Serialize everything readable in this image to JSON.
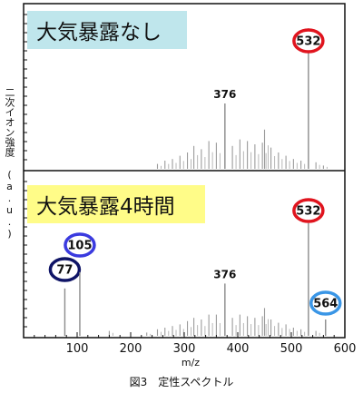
{
  "ylabel": "二次イオン強度 (a.u.)",
  "xlabel": "m/z",
  "caption": "図3　定性スペクトル",
  "colors": {
    "top_box": "#bfe6ec",
    "bottom_box": "#fffc88",
    "red": "#e0141e",
    "blue": "#3a3adf",
    "navy": "#0f1466",
    "lightblue": "#3a96e6"
  },
  "chart_data": [
    {
      "type": "line",
      "panel": "top",
      "title": "大気暴露なし",
      "xlim": [
        0,
        600
      ],
      "x_ticks": [],
      "peaks": [
        {
          "x": 376,
          "y": 0.4,
          "label": "376",
          "style": "plain"
        },
        {
          "x": 532,
          "y": 0.86,
          "label": "532",
          "style": "red"
        }
      ],
      "cluster": [
        {
          "x": 250,
          "y": 0.03
        },
        {
          "x": 264,
          "y": 0.05
        },
        {
          "x": 278,
          "y": 0.06
        },
        {
          "x": 292,
          "y": 0.08
        },
        {
          "x": 306,
          "y": 0.1
        },
        {
          "x": 318,
          "y": 0.14
        },
        {
          "x": 332,
          "y": 0.12
        },
        {
          "x": 346,
          "y": 0.17
        },
        {
          "x": 360,
          "y": 0.16
        },
        {
          "x": 390,
          "y": 0.14
        },
        {
          "x": 404,
          "y": 0.18
        },
        {
          "x": 418,
          "y": 0.17
        },
        {
          "x": 432,
          "y": 0.15
        },
        {
          "x": 446,
          "y": 0.16
        },
        {
          "x": 450,
          "y": 0.24
        },
        {
          "x": 462,
          "y": 0.13
        },
        {
          "x": 476,
          "y": 0.1
        },
        {
          "x": 490,
          "y": 0.08
        },
        {
          "x": 504,
          "y": 0.06
        },
        {
          "x": 518,
          "y": 0.05
        },
        {
          "x": 546,
          "y": 0.04
        },
        {
          "x": 560,
          "y": 0.02
        }
      ]
    },
    {
      "type": "line",
      "panel": "bottom",
      "title": "大気暴露4時間",
      "xlim": [
        0,
        600
      ],
      "x_ticks": [
        100,
        200,
        300,
        400,
        500,
        600
      ],
      "peaks": [
        {
          "x": 77,
          "y": 0.29,
          "label": "77",
          "style": "navy"
        },
        {
          "x": 105,
          "y": 0.39,
          "label": "105",
          "style": "blue"
        },
        {
          "x": 376,
          "y": 0.32,
          "label": "376",
          "style": "plain"
        },
        {
          "x": 532,
          "y": 0.69,
          "label": "532",
          "style": "red"
        },
        {
          "x": 564,
          "y": 0.1,
          "label": "564",
          "style": "lightblue"
        }
      ],
      "cluster": [
        {
          "x": 160,
          "y": 0.03
        },
        {
          "x": 230,
          "y": 0.02
        },
        {
          "x": 250,
          "y": 0.04
        },
        {
          "x": 264,
          "y": 0.05
        },
        {
          "x": 278,
          "y": 0.06
        },
        {
          "x": 292,
          "y": 0.07
        },
        {
          "x": 306,
          "y": 0.09
        },
        {
          "x": 318,
          "y": 0.11
        },
        {
          "x": 332,
          "y": 0.1
        },
        {
          "x": 346,
          "y": 0.13
        },
        {
          "x": 360,
          "y": 0.13
        },
        {
          "x": 390,
          "y": 0.11
        },
        {
          "x": 404,
          "y": 0.13
        },
        {
          "x": 418,
          "y": 0.12
        },
        {
          "x": 432,
          "y": 0.11
        },
        {
          "x": 446,
          "y": 0.12
        },
        {
          "x": 450,
          "y": 0.17
        },
        {
          "x": 462,
          "y": 0.1
        },
        {
          "x": 476,
          "y": 0.08
        },
        {
          "x": 490,
          "y": 0.07
        },
        {
          "x": 504,
          "y": 0.05
        },
        {
          "x": 518,
          "y": 0.04
        },
        {
          "x": 546,
          "y": 0.03
        }
      ]
    }
  ]
}
